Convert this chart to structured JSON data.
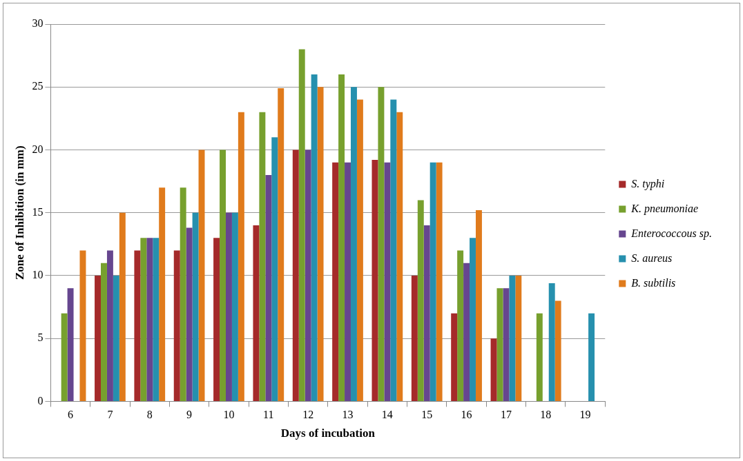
{
  "chart_data": {
    "type": "bar",
    "xlabel": "Days of incubation",
    "ylabel": "Zone of Inhibition (in mm)",
    "categories": [
      "6",
      "7",
      "8",
      "9",
      "10",
      "11",
      "12",
      "13",
      "14",
      "15",
      "16",
      "17",
      "18",
      "19"
    ],
    "series": [
      {
        "name": "S. typhi",
        "color": "#a52a2a",
        "values": [
          null,
          10,
          12,
          12,
          13,
          14,
          20,
          19,
          19.2,
          10,
          7,
          5,
          null,
          null
        ]
      },
      {
        "name": "K. pneumoniae",
        "color": "#77a02e",
        "values": [
          7,
          11,
          13,
          17,
          20,
          23,
          28,
          26,
          25,
          16,
          12,
          9,
          7,
          null
        ]
      },
      {
        "name": "Enterococcous sp.",
        "color": "#66468f",
        "values": [
          9,
          12,
          13,
          13.8,
          15,
          18,
          20,
          19,
          19,
          14,
          11,
          9,
          null,
          null
        ]
      },
      {
        "name": "S. aureus",
        "color": "#2690ae",
        "values": [
          null,
          10,
          13,
          15,
          15,
          21,
          26,
          25,
          24,
          19,
          13,
          10,
          9.4,
          7
        ]
      },
      {
        "name": "B. subtilis",
        "color": "#e07b1c",
        "values": [
          12,
          15,
          17,
          20,
          23,
          24.9,
          25,
          24,
          23,
          19,
          15.2,
          10,
          8,
          null
        ]
      }
    ],
    "ylim": [
      0,
      30
    ],
    "yticks": [
      0,
      5,
      10,
      15,
      20,
      25,
      30
    ],
    "grid": "y",
    "legend": "right"
  }
}
